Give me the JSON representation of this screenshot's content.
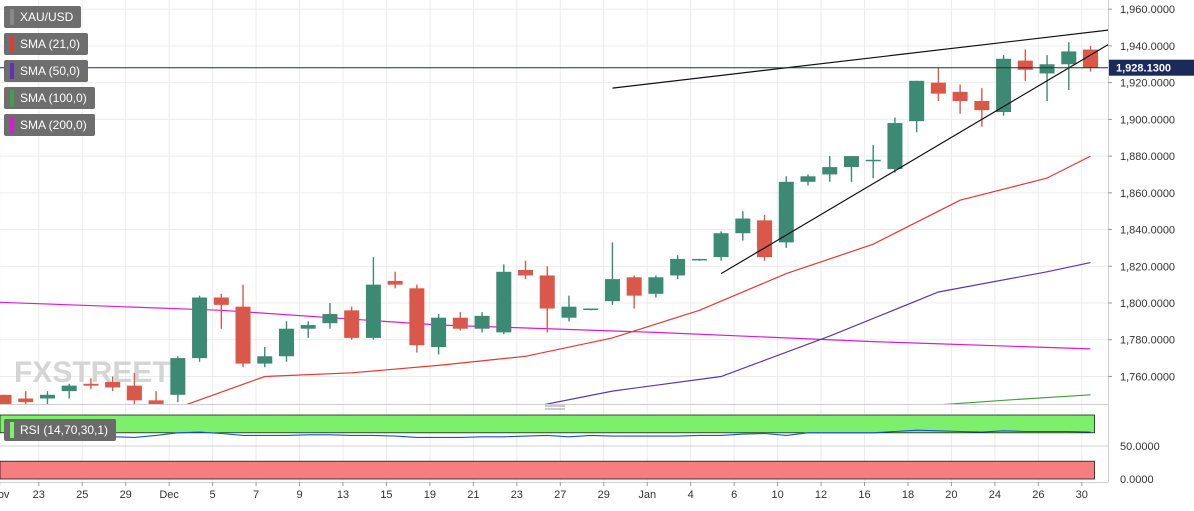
{
  "symbol": "XAU/USD",
  "watermark": "FXSTREET",
  "current_price_label": "1,928.1300",
  "indicators": [
    {
      "label": "SMA (21,0)",
      "color": "#e53935"
    },
    {
      "label": "SMA (50,0)",
      "color": "#5e35b1"
    },
    {
      "label": "SMA (100,0)",
      "color": "#43a047"
    },
    {
      "label": "SMA (200,0)",
      "color": "#d81bd8"
    }
  ],
  "colors": {
    "up": "#3c8a74",
    "down": "#d9584a",
    "sma21": "#e53935",
    "sma50": "#5e35b1",
    "sma100": "#43a047",
    "sma200": "#d81bd8",
    "rsi_line": "#1e4fd1",
    "overbought": "#7cf06a",
    "oversold": "#f57f7f"
  },
  "chart_data": [
    {
      "type": "candlestick",
      "title": "XAU/USD",
      "y_ticks": [
        "1,760.0000",
        "1,780.0000",
        "1,800.0000",
        "1,820.0000",
        "1,840.0000",
        "1,860.0000",
        "1,880.0000",
        "1,900.0000",
        "1,920.0000",
        "1,940.0000",
        "1,960.0000"
      ],
      "ylim": [
        1745,
        1965
      ],
      "x_ticks": [
        "Nov",
        "23",
        "25",
        "29",
        "Dec",
        "5",
        "7",
        "9",
        "13",
        "15",
        "19",
        "21",
        "23",
        "27",
        "29",
        "Jan",
        "4",
        "6",
        "10",
        "12",
        "16",
        "18",
        "20",
        "24",
        "26",
        "30"
      ],
      "ohlc": [
        [
          1750,
          1750,
          1742,
          1745
        ],
        [
          1748,
          1752,
          1742,
          1746
        ],
        [
          1748,
          1752,
          1745,
          1750
        ],
        [
          1752,
          1756,
          1748,
          1755
        ],
        [
          1756,
          1759,
          1753,
          1755
        ],
        [
          1757,
          1760,
          1752,
          1754
        ],
        [
          1755,
          1762,
          1745,
          1747
        ],
        [
          1747,
          1752,
          1743,
          1745
        ],
        [
          1750,
          1771,
          1746,
          1770
        ],
        [
          1770,
          1804,
          1768,
          1803
        ],
        [
          1803,
          1805,
          1786,
          1799
        ],
        [
          1798,
          1810,
          1765,
          1767
        ],
        [
          1767,
          1776,
          1765,
          1771
        ],
        [
          1771,
          1790,
          1768,
          1786
        ],
        [
          1786,
          1790,
          1781,
          1788
        ],
        [
          1789,
          1800,
          1786,
          1794
        ],
        [
          1796,
          1798,
          1780,
          1781
        ],
        [
          1781,
          1825,
          1780,
          1810
        ],
        [
          1812,
          1817,
          1808,
          1810
        ],
        [
          1808,
          1810,
          1773,
          1777
        ],
        [
          1776,
          1794,
          1772,
          1792
        ],
        [
          1792,
          1795,
          1785,
          1786
        ],
        [
          1786,
          1795,
          1784,
          1793
        ],
        [
          1784,
          1821,
          1783,
          1817
        ],
        [
          1818,
          1823,
          1813,
          1815
        ],
        [
          1815,
          1820,
          1784,
          1797
        ],
        [
          1792,
          1804,
          1790,
          1798
        ],
        [
          1797,
          1797,
          1796,
          1797
        ],
        [
          1801,
          1833,
          1799,
          1813
        ],
        [
          1814,
          1815,
          1797,
          1804
        ],
        [
          1805,
          1815,
          1803,
          1814
        ],
        [
          1815,
          1826,
          1813,
          1824
        ],
        [
          1824,
          1824,
          1823,
          1824
        ],
        [
          1825,
          1839,
          1823,
          1838
        ],
        [
          1838,
          1850,
          1834,
          1846
        ],
        [
          1845,
          1848,
          1823,
          1825
        ],
        [
          1833,
          1869,
          1830,
          1866
        ],
        [
          1866,
          1870,
          1864,
          1869
        ],
        [
          1870,
          1880,
          1866,
          1874
        ],
        [
          1874,
          1880,
          1866,
          1880
        ],
        [
          1878,
          1886,
          1868,
          1878
        ],
        [
          1873,
          1901,
          1871,
          1898
        ],
        [
          1899,
          1921,
          1893,
          1921
        ],
        [
          1920,
          1928,
          1910,
          1914
        ],
        [
          1915,
          1919,
          1903,
          1910
        ],
        [
          1910,
          1917,
          1896,
          1905
        ],
        [
          1904,
          1935,
          1902,
          1933
        ],
        [
          1932,
          1938,
          1921,
          1927
        ],
        [
          1925,
          1935,
          1910,
          1930
        ],
        [
          1930,
          1942,
          1916,
          1937
        ],
        [
          1938,
          1940,
          1926,
          1928
        ]
      ],
      "sma21": [
        [
          0,
          1734
        ],
        [
          4,
          1738
        ],
        [
          8,
          1743
        ],
        [
          12,
          1760
        ],
        [
          16,
          1762
        ],
        [
          20,
          1766
        ],
        [
          24,
          1771
        ],
        [
          28,
          1781
        ],
        [
          32,
          1796
        ],
        [
          36,
          1816
        ],
        [
          40,
          1832
        ],
        [
          44,
          1856
        ],
        [
          48,
          1868
        ],
        [
          50,
          1880
        ]
      ],
      "sma50": [
        [
          22,
          1738
        ],
        [
          28,
          1752
        ],
        [
          33,
          1760
        ],
        [
          38,
          1782
        ],
        [
          43,
          1806
        ],
        [
          48,
          1817
        ],
        [
          50,
          1822
        ]
      ],
      "sma100": [
        [
          40,
          1742
        ],
        [
          46,
          1747
        ],
        [
          50,
          1750
        ]
      ],
      "sma200": [
        [
          -4,
          1802
        ],
        [
          10,
          1796
        ],
        [
          20,
          1788
        ],
        [
          30,
          1784
        ],
        [
          40,
          1779
        ],
        [
          50,
          1775
        ]
      ],
      "trendlines": [
        {
          "name": "resistance",
          "x1": 28,
          "y1": 1917,
          "x2": 54,
          "y2": 1953
        },
        {
          "name": "support",
          "x1": 33,
          "y1": 1816,
          "x2": 54,
          "y2": 1963
        }
      ],
      "current_price": 1928.13
    },
    {
      "type": "line",
      "title": "RSI (14,70,30,1)",
      "ylim": [
        0,
        100
      ],
      "y_ticks": [
        "0.0000",
        "50.0000"
      ],
      "overbought": 70,
      "oversold": 30,
      "values": [
        67,
        67,
        66,
        68,
        64,
        64,
        63,
        66,
        70,
        71,
        69,
        66,
        66,
        66,
        67,
        67,
        66,
        66,
        65,
        63,
        63,
        63,
        64,
        64,
        65,
        66,
        64,
        66,
        65,
        65,
        65,
        65,
        66,
        66,
        68,
        69,
        66,
        70,
        70,
        70,
        70,
        72,
        74,
        73,
        72,
        71,
        73,
        72,
        72,
        72,
        71
      ]
    }
  ]
}
